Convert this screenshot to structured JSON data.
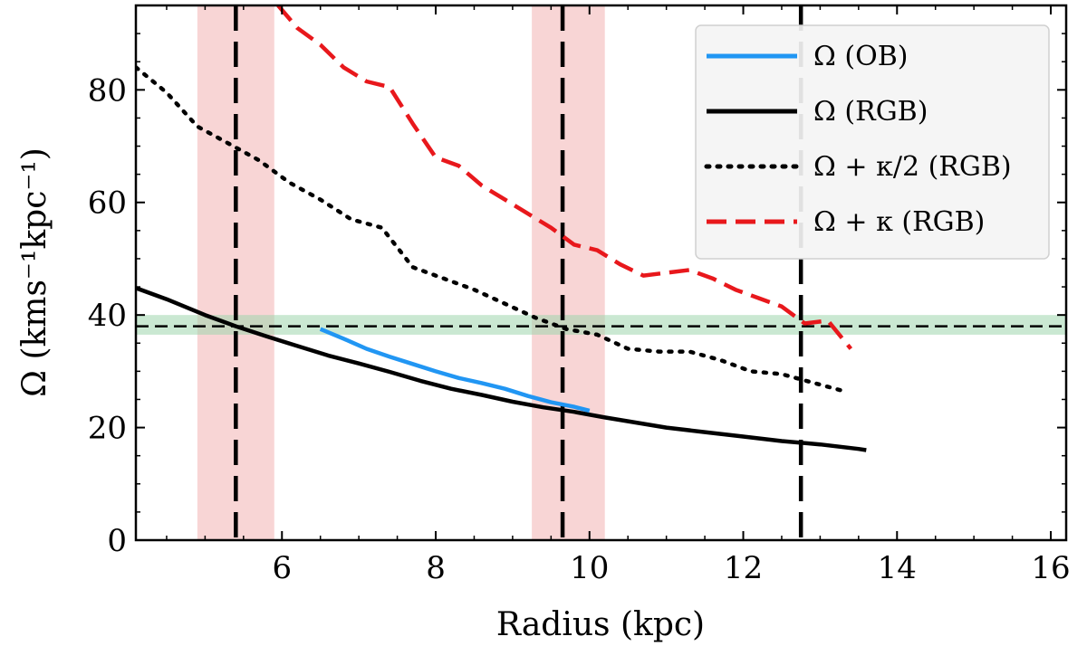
{
  "chart_data": {
    "type": "line",
    "title": "",
    "xlabel": "Radius (kpc)",
    "ylabel": "Ω (kms⁻¹kpc⁻¹)",
    "xlim": [
      4.1,
      16.2
    ],
    "ylim": [
      0,
      95
    ],
    "x_ticks": [
      6,
      8,
      10,
      12,
      14,
      16
    ],
    "x_tick_labels": [
      "6",
      "8",
      "10",
      "12",
      "14",
      "16"
    ],
    "y_ticks": [
      0,
      20,
      40,
      60,
      80
    ],
    "y_tick_labels": [
      "0",
      "20",
      "40",
      "60",
      "80"
    ],
    "legend_position": "top-right",
    "series": [
      {
        "name": "Ω (OB)",
        "color": "#2196f3",
        "style": "solid",
        "x": [
          6.5,
          6.8,
          7.1,
          7.4,
          7.7,
          8.0,
          8.3,
          8.6,
          8.9,
          9.2,
          9.5,
          9.8,
          10.0
        ],
        "y": [
          37.5,
          35.8,
          34.0,
          32.6,
          31.3,
          30.0,
          28.8,
          27.9,
          26.9,
          25.6,
          24.5,
          23.7,
          23.0
        ]
      },
      {
        "name": "Ω (RGB)",
        "color": "#000000",
        "style": "solid",
        "x": [
          4.1,
          4.5,
          5.0,
          5.4,
          5.8,
          6.2,
          6.6,
          7.0,
          7.4,
          7.8,
          8.2,
          8.6,
          9.0,
          9.4,
          9.8,
          10.2,
          10.6,
          11.0,
          11.5,
          12.0,
          12.5,
          13.0,
          13.5,
          13.6
        ],
        "y": [
          44.8,
          42.8,
          40.0,
          38.0,
          36.2,
          34.5,
          32.8,
          31.4,
          29.9,
          28.3,
          26.9,
          25.8,
          24.6,
          23.6,
          22.8,
          21.8,
          20.9,
          20.0,
          19.2,
          18.4,
          17.6,
          17.0,
          16.2,
          16.0
        ]
      },
      {
        "name": "Ω + κ/2 (RGB)",
        "color": "#000000",
        "style": "dotted",
        "x": [
          4.1,
          4.5,
          4.9,
          5.3,
          5.7,
          6.1,
          6.5,
          6.9,
          7.3,
          7.7,
          8.1,
          8.5,
          8.9,
          9.3,
          9.7,
          10.1,
          10.5,
          10.9,
          11.3,
          11.7,
          12.1,
          12.5,
          12.9,
          13.3
        ],
        "y": [
          84.0,
          79.5,
          73.5,
          70.5,
          67.5,
          63.5,
          60.5,
          57.0,
          55.5,
          48.5,
          46.5,
          44.5,
          42.0,
          39.5,
          37.5,
          36.5,
          34.0,
          33.5,
          33.5,
          32.0,
          30.0,
          29.5,
          28.0,
          26.5
        ]
      },
      {
        "name": "Ω + κ (RGB)",
        "color": "#e8181c",
        "style": "dashed",
        "x": [
          5.95,
          6.2,
          6.5,
          6.8,
          7.1,
          7.4,
          7.7,
          8.0,
          8.3,
          8.6,
          8.9,
          9.2,
          9.5,
          9.8,
          10.1,
          10.4,
          10.7,
          11.0,
          11.3,
          11.6,
          11.9,
          12.2,
          12.5,
          12.8,
          13.1,
          13.4
        ],
        "y": [
          95.0,
          91.0,
          88.0,
          84.0,
          81.5,
          80.5,
          74.0,
          68.0,
          66.5,
          63.0,
          60.5,
          58.0,
          55.5,
          52.5,
          51.5,
          49.0,
          47.0,
          47.5,
          48.0,
          46.5,
          44.5,
          43.0,
          41.5,
          38.5,
          39.0,
          34.0
        ]
      }
    ],
    "reference_lines": {
      "horizontal_y": 38,
      "horizontal_band": [
        36.5,
        40.0
      ],
      "vertical_x": [
        5.4,
        9.65,
        12.75
      ],
      "vertical_bands": [
        [
          4.9,
          5.9
        ],
        [
          9.25,
          10.2
        ]
      ]
    }
  }
}
